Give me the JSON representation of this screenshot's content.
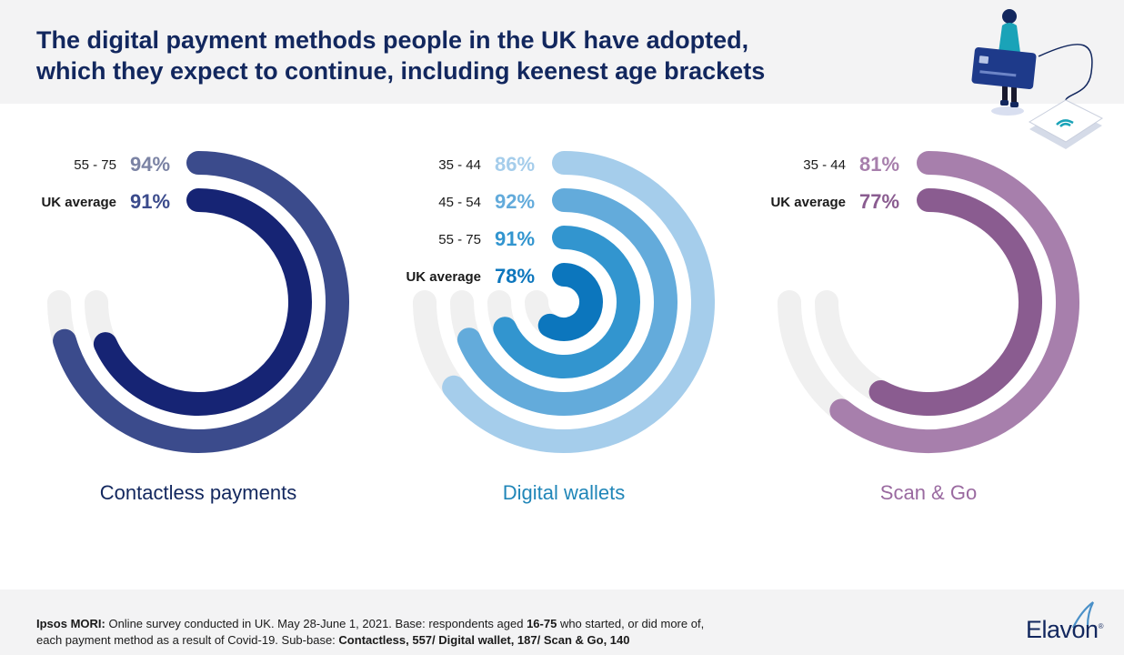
{
  "header": {
    "title_line1": "The digital payment methods people in the UK have adopted,",
    "title_line2": "which they expect to continue, including keenest age brackets"
  },
  "chart_data": [
    {
      "type": "radial-bar",
      "title": "Contactless payments",
      "unit": "%",
      "max": 100,
      "series": [
        {
          "label": "55 - 75",
          "value": 94,
          "bold": false,
          "color": "#3b4b8c"
        },
        {
          "label": "UK average",
          "value": 91,
          "bold": true,
          "color": "#162474"
        }
      ],
      "title_color": "#12275e",
      "value_colors": [
        "#7b83a4",
        "#3b4b8c"
      ]
    },
    {
      "type": "radial-bar",
      "title": "Digital wallets",
      "unit": "%",
      "max": 100,
      "series": [
        {
          "label": "35 - 44",
          "value": 86,
          "bold": false,
          "color": "#a5cdeb"
        },
        {
          "label": "45 - 54",
          "value": 92,
          "bold": false,
          "color": "#63abdb"
        },
        {
          "label": "55 - 75",
          "value": 91,
          "bold": false,
          "color": "#3295cf"
        },
        {
          "label": "UK average",
          "value": 78,
          "bold": true,
          "color": "#0c76bd"
        }
      ],
      "title_color": "#2086b8",
      "value_colors": [
        "#a5cdeb",
        "#63abdb",
        "#3295cf",
        "#0c76bd"
      ]
    },
    {
      "type": "radial-bar",
      "title": "Scan & Go",
      "unit": "%",
      "max": 100,
      "series": [
        {
          "label": "35 - 44",
          "value": 81,
          "bold": false,
          "color": "#a77fac"
        },
        {
          "label": "UK average",
          "value": 77,
          "bold": true,
          "color": "#8a5c90"
        }
      ],
      "title_color": "#9a6aa0",
      "value_colors": [
        "#a77fac",
        "#8a5c90"
      ]
    }
  ],
  "colors": {
    "track": "#f0f0f0",
    "label_text": "#1a1a1a"
  },
  "footer": {
    "line1": {
      "b1": "Ipsos MORI:",
      "t1": " Online survey conducted in UK. May 28-June 1, 2021. Base: respondents aged ",
      "b2": "16-75",
      "t2": " who started, or did more of,"
    },
    "line2": {
      "t1": "each payment method as a result of Covid-19. Sub-base: ",
      "b1": "Contactless, 557/ Digital wallet, 187/ Scan & Go, 140"
    }
  },
  "logo": {
    "text": "Elavon",
    "reg": "®"
  }
}
